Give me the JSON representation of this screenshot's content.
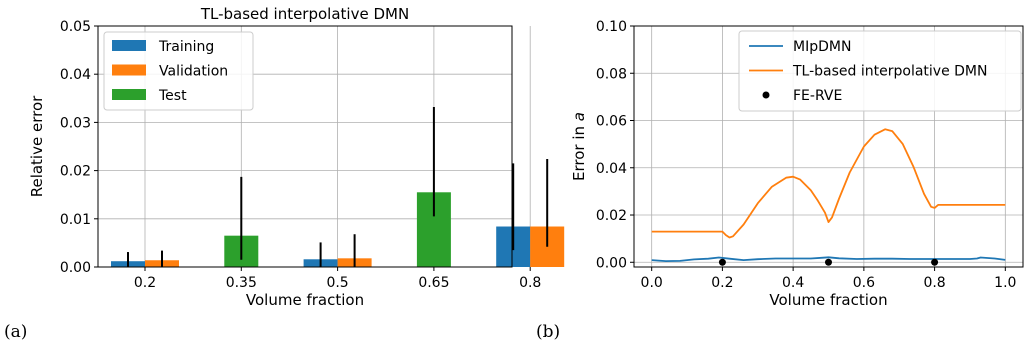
{
  "chart_data": [
    {
      "type": "bar",
      "panel_label": "(a)",
      "title": "TL-based interpolative DMN",
      "xlabel": "Volume fraction",
      "ylabel": "Relative error",
      "categories": [
        "0.2",
        "0.35",
        "0.5",
        "0.65",
        "0.8"
      ],
      "ylim": [
        0,
        0.05
      ],
      "yticks": [
        "0.00",
        "0.01",
        "0.02",
        "0.03",
        "0.04",
        "0.05"
      ],
      "grid": true,
      "legend_position": "top-left",
      "series": [
        {
          "name": "Training",
          "color": "#1f77b4",
          "values": [
            0.0012,
            null,
            0.0016,
            null,
            0.0084
          ],
          "err_low": [
            0.0,
            null,
            0.0,
            null,
            0.0035
          ],
          "err_high": [
            0.0031,
            null,
            0.0051,
            null,
            0.0215
          ]
        },
        {
          "name": "Validation",
          "color": "#ff7f0e",
          "values": [
            0.0014,
            null,
            0.0018,
            null,
            0.0084
          ],
          "err_low": [
            0.0,
            null,
            0.0,
            null,
            0.0042
          ],
          "err_high": [
            0.0034,
            null,
            0.0068,
            null,
            0.0224
          ]
        },
        {
          "name": "Test",
          "color": "#2ca02c",
          "values": [
            null,
            0.0065,
            null,
            0.0155,
            null
          ],
          "err_low": [
            null,
            0.0015,
            null,
            0.0105,
            null
          ],
          "err_high": [
            null,
            0.0187,
            null,
            0.0332,
            null
          ]
        }
      ]
    },
    {
      "type": "line",
      "panel_label": "(b)",
      "xlabel": "Volume fraction",
      "ylabel": "Error in a",
      "xlim": [
        -0.05,
        1.05
      ],
      "ylim": [
        -0.002,
        0.1
      ],
      "xticks": [
        "0.0",
        "0.2",
        "0.4",
        "0.6",
        "0.8",
        "1.0"
      ],
      "yticks": [
        "0.00",
        "0.02",
        "0.04",
        "0.06",
        "0.08",
        "0.10"
      ],
      "grid": true,
      "legend_position": "top-right",
      "series": [
        {
          "name": "MIpDMN",
          "color": "#1f77b4",
          "x": [
            0.0,
            0.04,
            0.08,
            0.12,
            0.16,
            0.19,
            0.22,
            0.26,
            0.3,
            0.35,
            0.4,
            0.45,
            0.48,
            0.5,
            0.53,
            0.58,
            0.63,
            0.68,
            0.73,
            0.78,
            0.82,
            0.86,
            0.9,
            0.92,
            0.93,
            0.95,
            0.97,
            1.0
          ],
          "y": [
            0.0009,
            0.0005,
            0.0006,
            0.0012,
            0.0015,
            0.002,
            0.0015,
            0.0009,
            0.0013,
            0.0016,
            0.0016,
            0.0016,
            0.0019,
            0.0021,
            0.0017,
            0.0014,
            0.0015,
            0.0015,
            0.0014,
            0.0014,
            0.0014,
            0.0014,
            0.0014,
            0.0016,
            0.002,
            0.0018,
            0.0016,
            0.001
          ]
        },
        {
          "name": "TL-based interpolative DMN",
          "color": "#ff7f0e",
          "x": [
            0.0,
            0.2,
            0.21,
            0.22,
            0.23,
            0.26,
            0.3,
            0.34,
            0.38,
            0.4,
            0.42,
            0.45,
            0.47,
            0.49,
            0.5,
            0.51,
            0.53,
            0.56,
            0.6,
            0.63,
            0.66,
            0.68,
            0.71,
            0.74,
            0.77,
            0.79,
            0.8,
            0.81,
            1.0
          ],
          "y": [
            0.013,
            0.013,
            0.0115,
            0.0105,
            0.011,
            0.016,
            0.025,
            0.032,
            0.0358,
            0.0362,
            0.035,
            0.0305,
            0.026,
            0.021,
            0.017,
            0.019,
            0.027,
            0.038,
            0.049,
            0.054,
            0.0563,
            0.0555,
            0.05,
            0.0405,
            0.029,
            0.0235,
            0.023,
            0.0243,
            0.0243
          ]
        },
        {
          "name": "FE-RVE",
          "color": "#000000",
          "marker": "circle",
          "x": [
            0.2,
            0.5,
            0.8
          ],
          "y": [
            0.0,
            0.0,
            0.0
          ]
        }
      ]
    }
  ]
}
